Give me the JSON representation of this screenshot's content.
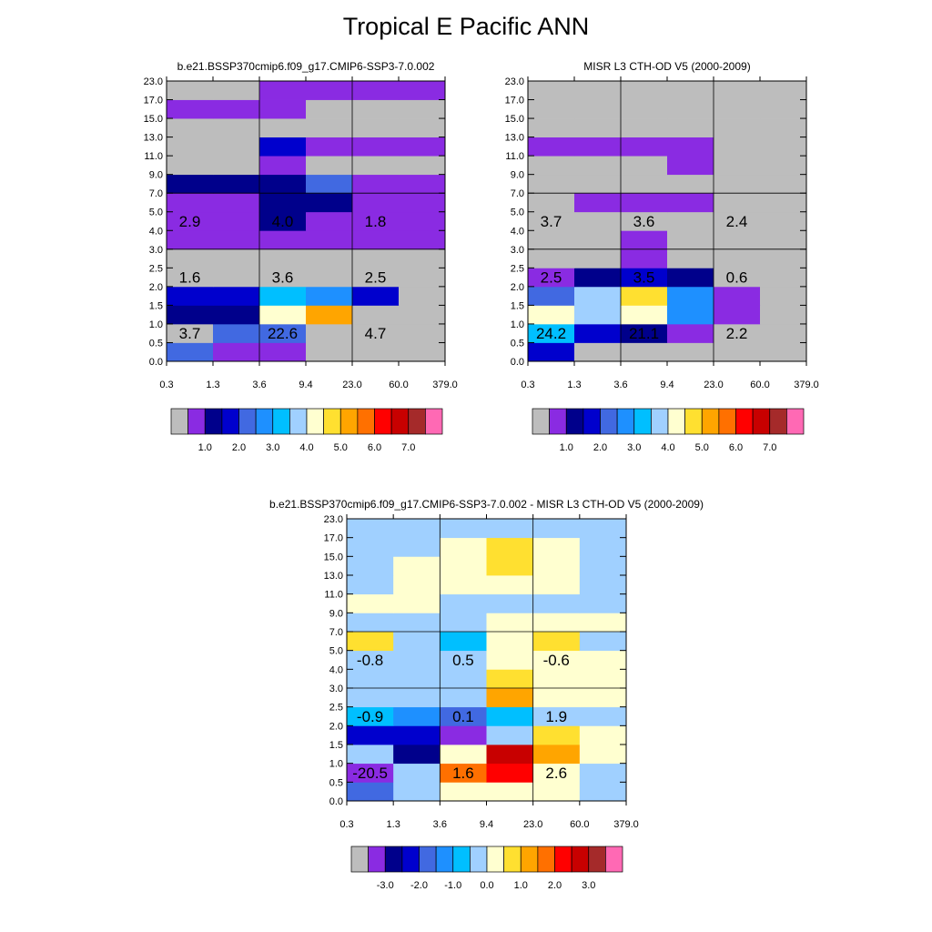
{
  "title": "Tropical E Pacific ANN",
  "colors": {
    "panel": [
      "#bdbdbd",
      "#8a2be2",
      "#00008b",
      "#0000cd",
      "#4169e1",
      "#1e90ff",
      "#00bfff",
      "#a0d0ff",
      "#ffffd0",
      "#ffe030",
      "#ffa500",
      "#ff7000",
      "#ff0000",
      "#c80000",
      "#a52a2a",
      "#ff69b4"
    ],
    "diff": [
      "#bdbdbd",
      "#8a2be2",
      "#00008b",
      "#0000cd",
      "#4169e1",
      "#1e90ff",
      "#00bfff",
      "#a0d0ff",
      "#ffffd0",
      "#ffe030",
      "#ffa500",
      "#ff7000",
      "#ff0000",
      "#c80000",
      "#a52a2a",
      "#ff69b4"
    ]
  },
  "chart_data": [
    {
      "type": "heatmap",
      "title": "b.e21.BSSP370cmip6.f09_g17.CMIP6-SSP3-7.0.002",
      "x_ticks": [
        "0.3",
        "1.3",
        "3.6",
        "9.4",
        "23.0",
        "60.0",
        "379.0"
      ],
      "y_ticks": [
        "0.0",
        "0.5",
        "1.0",
        "1.5",
        "2.0",
        "2.5",
        "3.0",
        "4.0",
        "5.0",
        "7.0",
        "9.0",
        "11.0",
        "13.0",
        "15.0",
        "17.0",
        "23.0"
      ],
      "cells": [
        [
          4,
          1,
          1,
          0,
          0,
          0
        ],
        [
          0,
          4,
          4,
          0,
          0,
          0
        ],
        [
          2,
          2,
          8,
          10,
          0,
          0
        ],
        [
          3,
          3,
          6,
          5,
          3,
          0
        ],
        [
          0,
          0,
          0,
          0,
          0,
          0
        ],
        [
          0,
          0,
          0,
          0,
          0,
          0
        ],
        [
          1,
          1,
          1,
          1,
          1,
          1
        ],
        [
          1,
          1,
          2,
          1,
          1,
          1
        ],
        [
          1,
          1,
          2,
          2,
          1,
          1
        ],
        [
          2,
          2,
          2,
          4,
          1,
          1
        ],
        [
          0,
          0,
          1,
          0,
          0,
          0
        ],
        [
          0,
          0,
          3,
          1,
          1,
          1
        ],
        [
          0,
          0,
          0,
          0,
          0,
          0
        ],
        [
          1,
          1,
          1,
          0,
          0,
          0
        ],
        [
          0,
          0,
          1,
          1,
          1,
          1
        ],
        [
          0,
          0,
          0,
          1,
          0,
          0
        ]
      ],
      "annotations": [
        {
          "x": 0.5,
          "y": 1.5,
          "text": "3.7"
        },
        {
          "x": 2.5,
          "y": 1.5,
          "text": "22.6"
        },
        {
          "x": 4.5,
          "y": 1.5,
          "text": "4.7"
        },
        {
          "x": 0.5,
          "y": 4.5,
          "text": "1.6"
        },
        {
          "x": 2.5,
          "y": 4.5,
          "text": "3.6"
        },
        {
          "x": 4.5,
          "y": 4.5,
          "text": "2.5"
        },
        {
          "x": 0.5,
          "y": 7.5,
          "text": "2.9"
        },
        {
          "x": 2.5,
          "y": 7.5,
          "text": "4.0"
        },
        {
          "x": 4.5,
          "y": 7.5,
          "text": "1.8"
        }
      ],
      "colorbar_labels": [
        "1.0",
        "2.0",
        "3.0",
        "4.0",
        "5.0",
        "6.0",
        "7.0"
      ]
    },
    {
      "type": "heatmap",
      "title": "MISR L3 CTH-OD V5 (2000-2009)",
      "x_ticks": [
        "0.3",
        "1.3",
        "3.6",
        "9.4",
        "23.0",
        "60.0",
        "379.0"
      ],
      "y_ticks": [
        "0.0",
        "0.5",
        "1.0",
        "1.5",
        "2.0",
        "2.5",
        "3.0",
        "4.0",
        "5.0",
        "7.0",
        "9.0",
        "11.0",
        "13.0",
        "15.0",
        "17.0",
        "23.0"
      ],
      "cells": [
        [
          3,
          0,
          0,
          0,
          0,
          0
        ],
        [
          6,
          3,
          2,
          1,
          0,
          0
        ],
        [
          8,
          7,
          8,
          5,
          1,
          0
        ],
        [
          4,
          7,
          9,
          5,
          1,
          0
        ],
        [
          1,
          2,
          3,
          2,
          0,
          0
        ],
        [
          0,
          0,
          1,
          0,
          0,
          0
        ],
        [
          0,
          0,
          1,
          0,
          0,
          0
        ],
        [
          0,
          0,
          0,
          0,
          0,
          0
        ],
        [
          0,
          1,
          1,
          1,
          0,
          0
        ],
        [
          0,
          0,
          0,
          0,
          0,
          0
        ],
        [
          0,
          0,
          0,
          1,
          0,
          0
        ],
        [
          1,
          1,
          1,
          1,
          0,
          0
        ],
        [
          0,
          0,
          0,
          0,
          0,
          0
        ],
        [
          0,
          0,
          0,
          0,
          0,
          0
        ],
        [
          0,
          0,
          0,
          0,
          0,
          0
        ],
        [
          0,
          0,
          0,
          0,
          0,
          0
        ]
      ],
      "annotations": [
        {
          "x": 0.5,
          "y": 1.5,
          "text": "24.2"
        },
        {
          "x": 2.5,
          "y": 1.5,
          "text": "21.1"
        },
        {
          "x": 4.5,
          "y": 1.5,
          "text": "2.2"
        },
        {
          "x": 0.5,
          "y": 4.5,
          "text": "2.5"
        },
        {
          "x": 2.5,
          "y": 4.5,
          "text": "3.5"
        },
        {
          "x": 4.5,
          "y": 4.5,
          "text": "0.6"
        },
        {
          "x": 0.5,
          "y": 7.5,
          "text": "3.7"
        },
        {
          "x": 2.5,
          "y": 7.5,
          "text": "3.6"
        },
        {
          "x": 4.5,
          "y": 7.5,
          "text": "2.4"
        }
      ],
      "colorbar_labels": [
        "1.0",
        "2.0",
        "3.0",
        "4.0",
        "5.0",
        "6.0",
        "7.0"
      ]
    },
    {
      "type": "heatmap",
      "title": "b.e21.BSSP370cmip6.f09_g17.CMIP6-SSP3-7.0.002 - MISR L3 CTH-OD V5 (2000-2009)",
      "x_ticks": [
        "0.3",
        "1.3",
        "3.6",
        "9.4",
        "23.0",
        "60.0",
        "379.0"
      ],
      "y_ticks": [
        "0.0",
        "0.5",
        "1.0",
        "1.5",
        "2.0",
        "2.5",
        "3.0",
        "4.0",
        "5.0",
        "7.0",
        "9.0",
        "11.0",
        "13.0",
        "15.0",
        "17.0",
        "23.0"
      ],
      "cells": [
        [
          4,
          7,
          8,
          8,
          8,
          7
        ],
        [
          1,
          7,
          11,
          12,
          8,
          7
        ],
        [
          7,
          2,
          8,
          13,
          10,
          8
        ],
        [
          3,
          3,
          1,
          7,
          9,
          8
        ],
        [
          6,
          5,
          4,
          6,
          7,
          7
        ],
        [
          7,
          7,
          7,
          10,
          8,
          8
        ],
        [
          7,
          7,
          7,
          9,
          8,
          8
        ],
        [
          7,
          7,
          7,
          8,
          8,
          8
        ],
        [
          9,
          7,
          6,
          8,
          9,
          7
        ],
        [
          7,
          7,
          7,
          8,
          8,
          8
        ],
        [
          8,
          8,
          7,
          7,
          7,
          7
        ],
        [
          7,
          8,
          8,
          8,
          8,
          7
        ],
        [
          7,
          8,
          8,
          9,
          8,
          7
        ],
        [
          7,
          7,
          8,
          9,
          8,
          7
        ],
        [
          7,
          7,
          7,
          7,
          7,
          7
        ],
        [
          7,
          7,
          7,
          7,
          7,
          7
        ]
      ],
      "annotations": [
        {
          "x": 0.5,
          "y": 1.5,
          "text": "-20.5"
        },
        {
          "x": 2.5,
          "y": 1.5,
          "text": "1.6"
        },
        {
          "x": 4.5,
          "y": 1.5,
          "text": "2.6"
        },
        {
          "x": 0.5,
          "y": 4.5,
          "text": "-0.9"
        },
        {
          "x": 2.5,
          "y": 4.5,
          "text": "0.1"
        },
        {
          "x": 4.5,
          "y": 4.5,
          "text": "1.9"
        },
        {
          "x": 0.5,
          "y": 7.5,
          "text": "-0.8"
        },
        {
          "x": 2.5,
          "y": 7.5,
          "text": "0.5"
        },
        {
          "x": 4.5,
          "y": 7.5,
          "text": "-0.6"
        }
      ],
      "colorbar_labels": [
        "-3.0",
        "-2.0",
        "-1.0",
        "0.0",
        "1.0",
        "2.0",
        "3.0"
      ]
    }
  ]
}
